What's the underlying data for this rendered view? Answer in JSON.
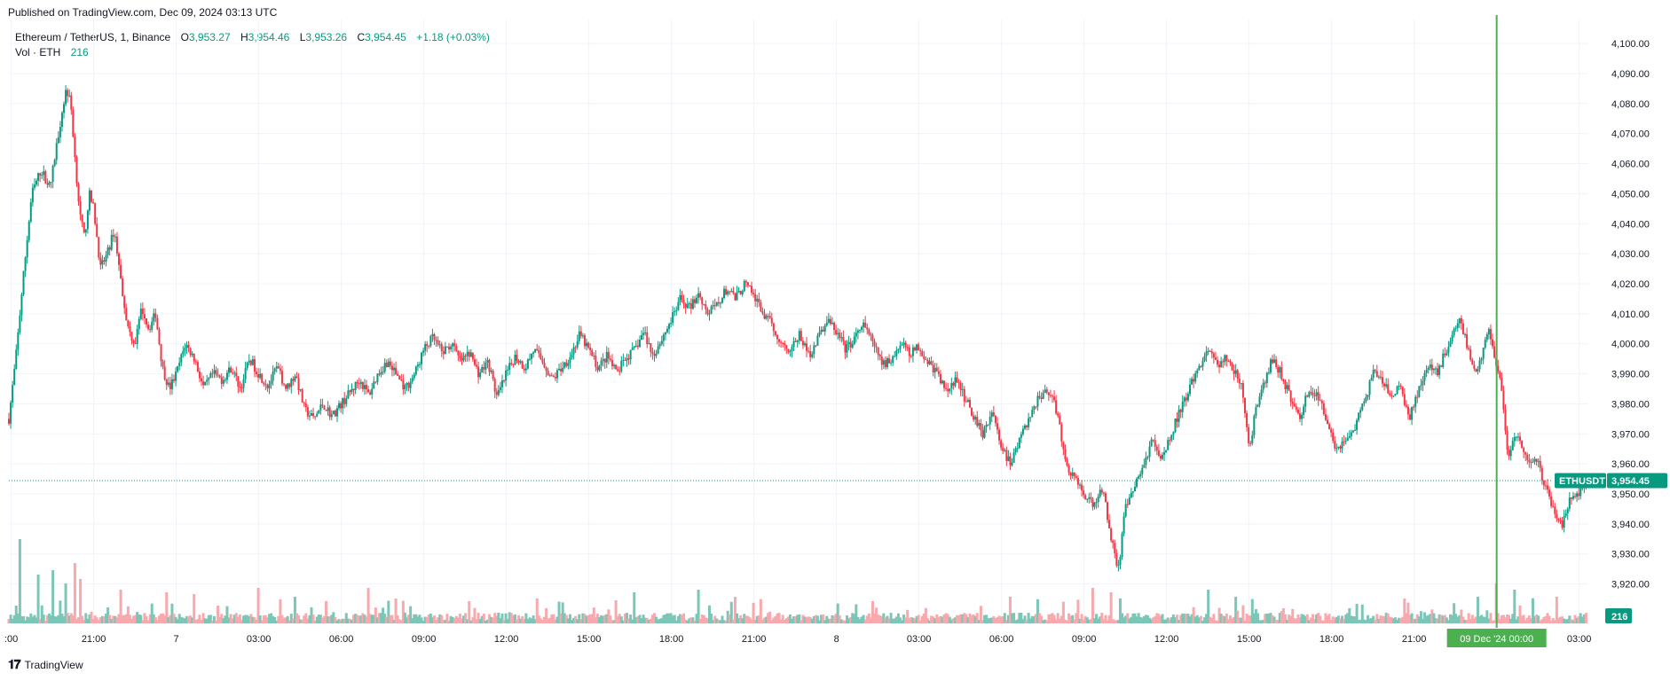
{
  "header": {
    "published": "Published on TradingView.com, Dec 09, 2024 03:13 UTC"
  },
  "legend": {
    "symbol": "Ethereum / TetherUS, 1, Binance",
    "open_label": "O",
    "open": "3,953.27",
    "high_label": "H",
    "high": "3,954.46",
    "low_label": "L",
    "low": "3,953.26",
    "close_label": "C",
    "close": "3,954.45",
    "change": "+1.18 (+0.03%)",
    "volume_label": "Vol · ETH",
    "volume_value": "216"
  },
  "footer": {
    "brand": "TradingView"
  },
  "colors": {
    "up": "#089981",
    "down": "#f23645",
    "up_volume": "#7cc6b8",
    "down_volume": "#f7a9ad",
    "grid": "#f0f3fa",
    "crosshair": "#4caf50",
    "price_line": "#089981"
  },
  "chart_data": {
    "type": "candlestick",
    "symbol_tag": "ETHUSDT",
    "last_price": 3954.45,
    "last_price_label": "3,954.45",
    "last_volume_label": "216",
    "crosshair_label": "09 Dec '24   00:00",
    "ylim": [
      3906,
      4108
    ],
    "y_ticks": [
      3920,
      3930,
      3940,
      3950,
      3960,
      3970,
      3980,
      3990,
      4000,
      4010,
      4020,
      4030,
      4040,
      4050,
      4060,
      4070,
      4080,
      4090,
      4100
    ],
    "y_tick_labels": [
      "3,920.00",
      "3,930.00",
      "3,940.00",
      "3,950.00",
      "3,960.00",
      "3,970.00",
      "3,980.00",
      "3,990.00",
      "4,000.00",
      "4,010.00",
      "4,020.00",
      "4,030.00",
      "4,040.00",
      "4,050.00",
      "4,060.00",
      "4,070.00",
      "4,080.00",
      "4,090.00",
      "4,100.00"
    ],
    "x_ticks": [
      {
        "label": ":00",
        "t": -1440
      },
      {
        "label": "21:00",
        "t": -1260
      },
      {
        "label": "7",
        "t": -1080
      },
      {
        "label": "03:00",
        "t": -900
      },
      {
        "label": "06:00",
        "t": -720
      },
      {
        "label": "09:00",
        "t": -540
      },
      {
        "label": "12:00",
        "t": -360
      },
      {
        "label": "15:00",
        "t": -180
      },
      {
        "label": "18:00",
        "t": 0
      },
      {
        "label": "21:00",
        "t": 180
      },
      {
        "label": "8",
        "t": 360
      },
      {
        "label": "03:00",
        "t": 540
      },
      {
        "label": "06:00",
        "t": 720
      },
      {
        "label": "09:00",
        "t": 900
      },
      {
        "label": "12:00",
        "t": 1080
      },
      {
        "label": "15:00",
        "t": 1260
      },
      {
        "label": "18:00",
        "t": 1440
      },
      {
        "label": "21:00",
        "t": 1620
      },
      {
        "label": "03:00",
        "t": 1980
      }
    ],
    "crosshair_t": 1800,
    "t_range": [
      -1445,
      2000
    ],
    "price_path": [
      [
        -1445,
        3975
      ],
      [
        -1430,
        3995
      ],
      [
        -1415,
        4020
      ],
      [
        -1395,
        4050
      ],
      [
        -1375,
        4058
      ],
      [
        -1355,
        4052
      ],
      [
        -1335,
        4072
      ],
      [
        -1320,
        4085
      ],
      [
        -1310,
        4080
      ],
      [
        -1300,
        4060
      ],
      [
        -1290,
        4043
      ],
      [
        -1280,
        4035
      ],
      [
        -1270,
        4050
      ],
      [
        -1260,
        4045
      ],
      [
        -1245,
        4025
      ],
      [
        -1230,
        4030
      ],
      [
        -1215,
        4038
      ],
      [
        -1200,
        4020
      ],
      [
        -1185,
        4005
      ],
      [
        -1170,
        4000
      ],
      [
        -1155,
        4012
      ],
      [
        -1140,
        4005
      ],
      [
        -1125,
        4010
      ],
      [
        -1110,
        3992
      ],
      [
        -1095,
        3985
      ],
      [
        -1080,
        3990
      ],
      [
        -1060,
        4000
      ],
      [
        -1040,
        3995
      ],
      [
        -1020,
        3985
      ],
      [
        -1000,
        3990
      ],
      [
        -980,
        3988
      ],
      [
        -960,
        3992
      ],
      [
        -940,
        3985
      ],
      [
        -920,
        3995
      ],
      [
        -900,
        3990
      ],
      [
        -880,
        3986
      ],
      [
        -860,
        3992
      ],
      [
        -840,
        3985
      ],
      [
        -820,
        3990
      ],
      [
        -800,
        3978
      ],
      [
        -780,
        3975
      ],
      [
        -760,
        3980
      ],
      [
        -740,
        3976
      ],
      [
        -720,
        3980
      ],
      [
        -700,
        3984
      ],
      [
        -680,
        3988
      ],
      [
        -660,
        3983
      ],
      [
        -640,
        3990
      ],
      [
        -620,
        3994
      ],
      [
        -600,
        3990
      ],
      [
        -580,
        3985
      ],
      [
        -560,
        3990
      ],
      [
        -540,
        3998
      ],
      [
        -520,
        4002
      ],
      [
        -500,
        3997
      ],
      [
        -480,
        4000
      ],
      [
        -460,
        3994
      ],
      [
        -440,
        3997
      ],
      [
        -420,
        3990
      ],
      [
        -400,
        3994
      ],
      [
        -380,
        3982
      ],
      [
        -360,
        3990
      ],
      [
        -340,
        3996
      ],
      [
        -320,
        3992
      ],
      [
        -300,
        3998
      ],
      [
        -280,
        3994
      ],
      [
        -260,
        3988
      ],
      [
        -240,
        3992
      ],
      [
        -220,
        3996
      ],
      [
        -200,
        4003
      ],
      [
        -180,
        3998
      ],
      [
        -160,
        3992
      ],
      [
        -140,
        3996
      ],
      [
        -120,
        3990
      ],
      [
        -100,
        3995
      ],
      [
        -80,
        3998
      ],
      [
        -60,
        4004
      ],
      [
        -40,
        3996
      ],
      [
        -20,
        4002
      ],
      [
        0,
        4008
      ],
      [
        20,
        4015
      ],
      [
        40,
        4012
      ],
      [
        60,
        4017
      ],
      [
        80,
        4010
      ],
      [
        100,
        4013
      ],
      [
        120,
        4018
      ],
      [
        140,
        4015
      ],
      [
        160,
        4020
      ],
      [
        180,
        4016
      ],
      [
        200,
        4010
      ],
      [
        220,
        4006
      ],
      [
        240,
        4000
      ],
      [
        260,
        3998
      ],
      [
        280,
        4003
      ],
      [
        300,
        3996
      ],
      [
        320,
        4002
      ],
      [
        340,
        4008
      ],
      [
        360,
        4004
      ],
      [
        380,
        3998
      ],
      [
        400,
        4002
      ],
      [
        420,
        4006
      ],
      [
        440,
        4000
      ],
      [
        460,
        3993
      ],
      [
        480,
        3995
      ],
      [
        500,
        4000
      ],
      [
        520,
        3997
      ],
      [
        540,
        3999
      ],
      [
        560,
        3994
      ],
      [
        580,
        3990
      ],
      [
        600,
        3984
      ],
      [
        620,
        3988
      ],
      [
        640,
        3982
      ],
      [
        660,
        3976
      ],
      [
        680,
        3970
      ],
      [
        700,
        3978
      ],
      [
        720,
        3965
      ],
      [
        740,
        3960
      ],
      [
        760,
        3968
      ],
      [
        780,
        3975
      ],
      [
        800,
        3982
      ],
      [
        820,
        3985
      ],
      [
        840,
        3978
      ],
      [
        860,
        3960
      ],
      [
        880,
        3955
      ],
      [
        900,
        3950
      ],
      [
        920,
        3946
      ],
      [
        940,
        3952
      ],
      [
        960,
        3935
      ],
      [
        975,
        3925
      ],
      [
        990,
        3945
      ],
      [
        1010,
        3952
      ],
      [
        1030,
        3960
      ],
      [
        1050,
        3968
      ],
      [
        1070,
        3962
      ],
      [
        1090,
        3970
      ],
      [
        1110,
        3978
      ],
      [
        1130,
        3985
      ],
      [
        1150,
        3992
      ],
      [
        1170,
        3998
      ],
      [
        1190,
        3993
      ],
      [
        1210,
        3995
      ],
      [
        1230,
        3990
      ],
      [
        1245,
        3985
      ],
      [
        1260,
        3965
      ],
      [
        1275,
        3978
      ],
      [
        1290,
        3985
      ],
      [
        1310,
        3995
      ],
      [
        1330,
        3990
      ],
      [
        1350,
        3982
      ],
      [
        1370,
        3975
      ],
      [
        1390,
        3985
      ],
      [
        1410,
        3982
      ],
      [
        1430,
        3975
      ],
      [
        1450,
        3965
      ],
      [
        1470,
        3968
      ],
      [
        1490,
        3972
      ],
      [
        1510,
        3980
      ],
      [
        1530,
        3990
      ],
      [
        1550,
        3988
      ],
      [
        1570,
        3982
      ],
      [
        1590,
        3986
      ],
      [
        1610,
        3975
      ],
      [
        1630,
        3985
      ],
      [
        1650,
        3992
      ],
      [
        1670,
        3990
      ],
      [
        1690,
        3998
      ],
      [
        1705,
        4005
      ],
      [
        1720,
        4008
      ],
      [
        1735,
        4000
      ],
      [
        1750,
        3990
      ],
      [
        1765,
        3995
      ],
      [
        1780,
        4005
      ],
      [
        1790,
        4000
      ],
      [
        1800,
        3993
      ],
      [
        1810,
        3985
      ],
      [
        1825,
        3960
      ],
      [
        1840,
        3970
      ],
      [
        1855,
        3965
      ],
      [
        1870,
        3960
      ],
      [
        1885,
        3963
      ],
      [
        1900,
        3955
      ],
      [
        1915,
        3948
      ],
      [
        1930,
        3942
      ],
      [
        1945,
        3940
      ],
      [
        1960,
        3948
      ],
      [
        1975,
        3950
      ],
      [
        1990,
        3953
      ],
      [
        1998,
        3954
      ]
    ],
    "volume_spikes": [
      {
        "t": -1420,
        "v": 95
      },
      {
        "t": -1380,
        "v": 55
      },
      {
        "t": -1350,
        "v": 60
      },
      {
        "t": -1320,
        "v": 45
      },
      {
        "t": -1300,
        "v": 68
      },
      {
        "t": -1290,
        "v": 50
      },
      {
        "t": -1200,
        "v": 38
      },
      {
        "t": -1100,
        "v": 35
      },
      {
        "t": -1040,
        "v": 33
      },
      {
        "t": -900,
        "v": 40
      },
      {
        "t": -820,
        "v": 30
      },
      {
        "t": -660,
        "v": 40
      },
      {
        "t": -600,
        "v": 28
      },
      {
        "t": -440,
        "v": 25
      },
      {
        "t": -120,
        "v": 26
      },
      {
        "t": -80,
        "v": 35
      },
      {
        "t": 60,
        "v": 38
      },
      {
        "t": 140,
        "v": 30
      },
      {
        "t": 225,
        "v": 62
      },
      {
        "t": 440,
        "v": 25
      },
      {
        "t": 740,
        "v": 30
      },
      {
        "t": 920,
        "v": 40
      },
      {
        "t": 960,
        "v": 35
      },
      {
        "t": 980,
        "v": 28
      },
      {
        "t": 1170,
        "v": 38
      },
      {
        "t": 1230,
        "v": 30
      },
      {
        "t": 1600,
        "v": 28
      },
      {
        "t": 1760,
        "v": 30
      },
      {
        "t": 1800,
        "v": 45
      },
      {
        "t": 1825,
        "v": 70
      },
      {
        "t": 1840,
        "v": 38
      },
      {
        "t": 1930,
        "v": 30
      }
    ]
  }
}
